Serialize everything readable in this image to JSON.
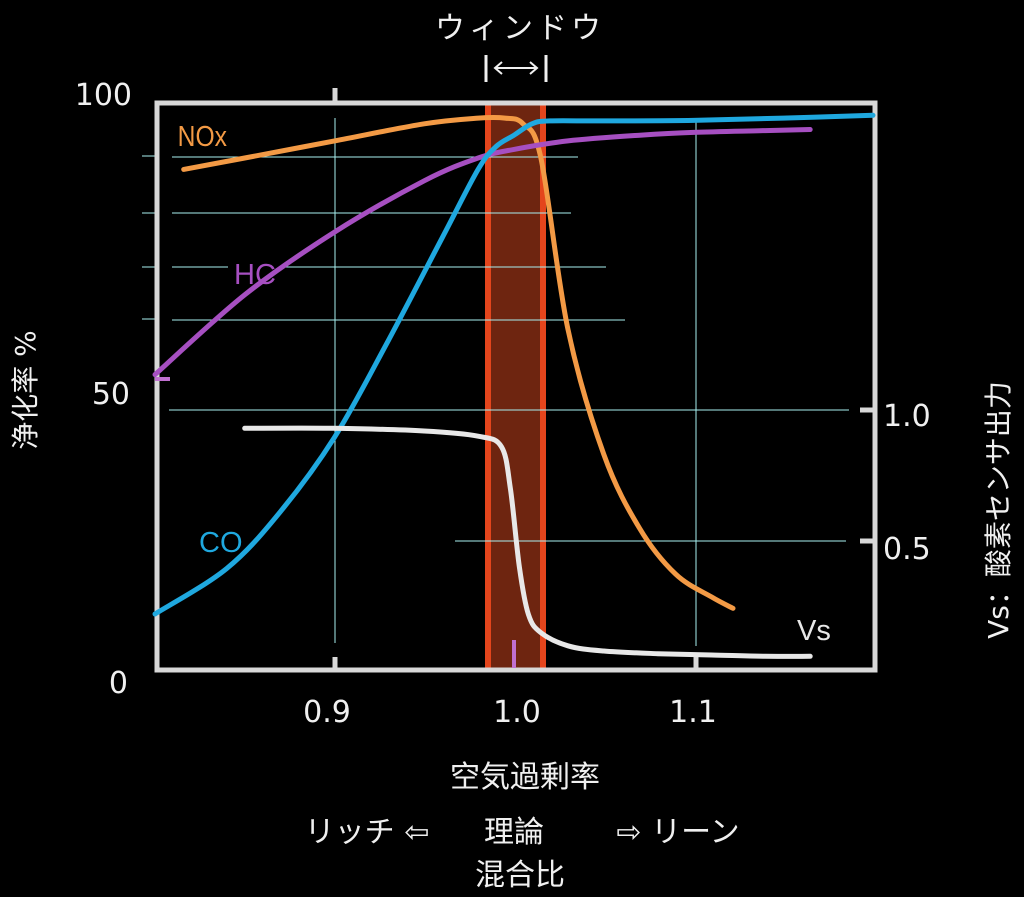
{
  "chart_data": {
    "type": "line",
    "title": "ウィンドウ",
    "window_marker": "|↔|",
    "xlabel": "空気過剰率",
    "xlabel_sub": {
      "left": "リッチ ⇦",
      "center_line1": "理論",
      "center_line2": "混合比",
      "right": "⇨ リーン"
    },
    "ylabel_left": "浄化率  %",
    "ylabel_right": "Vs：酸素センサ出力",
    "x_ticks": [
      "0.9",
      "1.0",
      "1.1"
    ],
    "x_range": [
      0.8,
      1.2
    ],
    "y_left_ticks": [
      "0",
      "50",
      "100"
    ],
    "y_left_range": [
      0,
      100
    ],
    "y_right_ticks": [
      "0.5",
      "1.0"
    ],
    "grid": true,
    "window_band": {
      "x_from": 0.984,
      "x_to": 1.017,
      "color": "#6e2510",
      "edge_color": "#e4451c"
    },
    "stoich_marker": {
      "x": 1.0,
      "color": "#c070d0"
    },
    "series": [
      {
        "name": "NOx",
        "color": "#f39a45",
        "axis": "left",
        "x": [
          0.816,
          0.85,
          0.9,
          0.95,
          0.98,
          0.995,
          1.005,
          1.015,
          1.03,
          1.05,
          1.07,
          1.09,
          1.11,
          1.122
        ],
        "values": [
          88,
          90,
          93,
          96,
          97,
          97,
          96,
          90,
          60,
          38,
          25,
          17,
          13,
          11
        ]
      },
      {
        "name": "HC",
        "color": "#a64fc1",
        "axis": "left",
        "x": [
          0.8,
          0.85,
          0.9,
          0.95,
          0.98,
          1.0,
          1.03,
          1.07,
          1.1,
          1.14,
          1.165
        ],
        "values": [
          52,
          66,
          77,
          86,
          90,
          91.5,
          93,
          94,
          94.5,
          94.8,
          95
        ]
      },
      {
        "name": "CO",
        "color": "#1fa8df",
        "axis": "left",
        "x": [
          0.8,
          0.84,
          0.87,
          0.9,
          0.93,
          0.96,
          0.98,
          0.99,
          1.0,
          1.01,
          1.02,
          1.05,
          1.1,
          1.15,
          1.2
        ],
        "values": [
          10,
          18,
          28,
          41,
          58,
          76,
          88,
          92,
          94,
          96,
          96.5,
          96.5,
          96.6,
          97,
          97.5
        ]
      },
      {
        "name": "Vs",
        "color": "#e8e8e8",
        "axis": "right",
        "x": [
          0.85,
          0.9,
          0.95,
          0.98,
          0.993,
          0.998,
          1.003,
          1.008,
          1.015,
          1.03,
          1.05,
          1.08,
          1.11,
          1.14,
          1.165
        ],
        "values": [
          0.93,
          0.93,
          0.92,
          0.9,
          0.86,
          0.7,
          0.4,
          0.22,
          0.15,
          0.1,
          0.08,
          0.07,
          0.065,
          0.06,
          0.06
        ]
      }
    ],
    "labels": {
      "nox": "NOx",
      "hc": "HC",
      "co": "CO",
      "vs": "Vs"
    }
  }
}
